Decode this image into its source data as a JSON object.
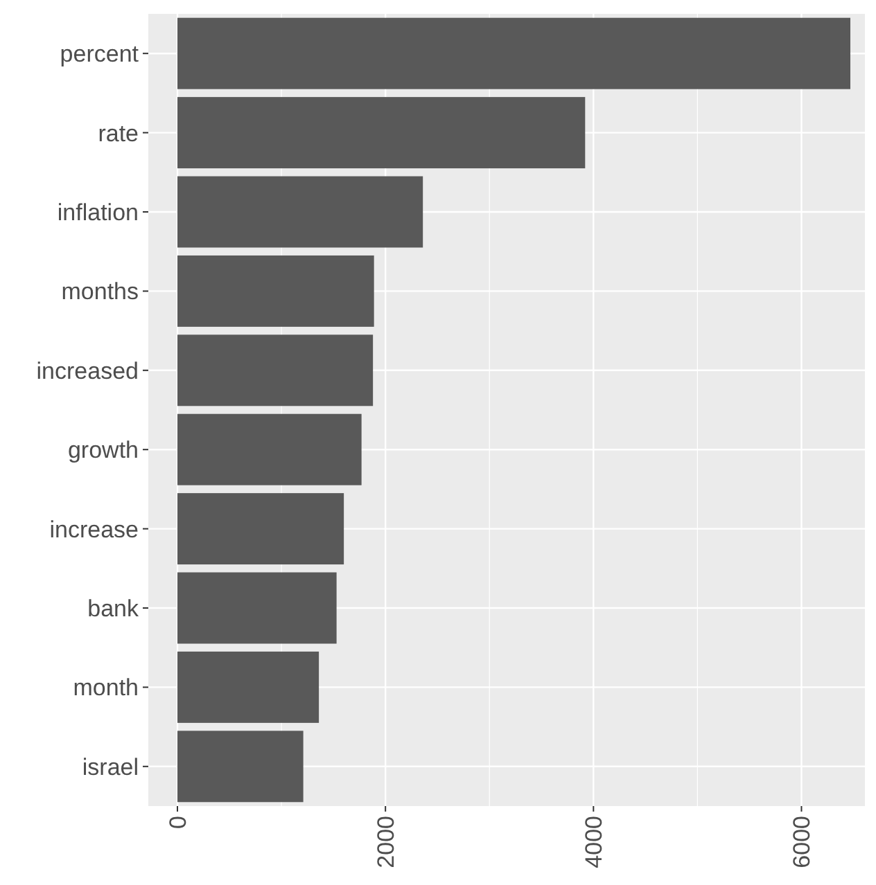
{
  "chart_data": {
    "type": "bar",
    "orientation": "horizontal",
    "categories": [
      "percent",
      "rate",
      "inflation",
      "months",
      "increased",
      "growth",
      "increase",
      "bank",
      "month",
      "israel"
    ],
    "values": [
      6470,
      3920,
      2360,
      1890,
      1880,
      1770,
      1600,
      1530,
      1360,
      1210
    ],
    "color": "#595959",
    "xlim": [
      -280,
      6610
    ],
    "xticks": [
      0,
      {
        "value": 1000,
        "label": null
      },
      2000,
      {
        "value": 3000,
        "label": null
      },
      4000,
      {
        "value": 5000,
        "label": null
      },
      6000
    ],
    "grid": true
  }
}
